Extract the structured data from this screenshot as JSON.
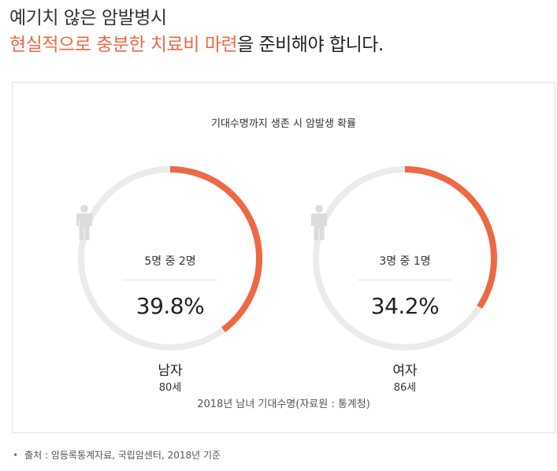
{
  "heading": {
    "line1": "예기치 않은 암발병시",
    "line2_accent": "현실적으로 충분한 치료비 마련",
    "line2_rest": "을 준비해야 합니다."
  },
  "card": {
    "chart_title": "기대수명까지 생존 시 암발생 확률",
    "source_line": "2018년 남녀 기대수명(자료원 : 통계청)"
  },
  "colors": {
    "accent": "#ee6845",
    "track": "#ebebeb",
    "person_inactive": "#dcdcdc"
  },
  "chart_data": [
    {
      "type": "pie",
      "label": "남자",
      "sub_label": "80세",
      "ratio_text": "5명 중 2명",
      "value": 39.8,
      "value_text": "39.8%",
      "people_total": 5,
      "people_highlighted": 2
    },
    {
      "type": "pie",
      "label": "여자",
      "sub_label": "86세",
      "ratio_text": "3명 중 1명",
      "value": 34.2,
      "value_text": "34.2%",
      "people_total": 3,
      "people_highlighted": 1
    }
  ],
  "footnote": {
    "text": "출처 : 암등록통계자료, 국립암센터, 2018년 기준"
  }
}
